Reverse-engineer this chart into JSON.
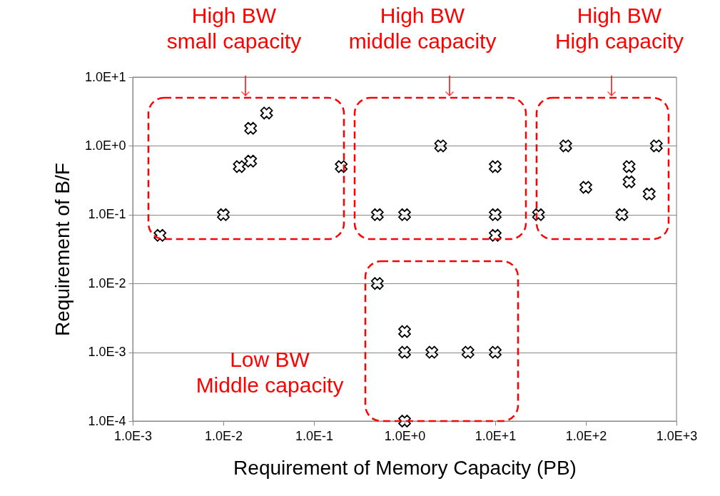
{
  "chart_data": {
    "type": "scatter",
    "xlabel": "Requirement of Memory Capacity (PB)",
    "ylabel": "Requirement of  B/F",
    "x": [
      0.002,
      0.01,
      0.015,
      0.02,
      0.02,
      0.03,
      0.2,
      0.5,
      1,
      2.5,
      10,
      10,
      10,
      30,
      60,
      100,
      250,
      300,
      300,
      500,
      600,
      0.5,
      1,
      1,
      2,
      5,
      10,
      1
    ],
    "series": [
      {
        "color": "#000000",
        "values": [
          0.05,
          0.1,
          0.5,
          0.6,
          1.8,
          3,
          0.5,
          0.1,
          0.1,
          1,
          0.5,
          0.1,
          0.05,
          0.1,
          1,
          0.25,
          0.1,
          0.5,
          0.3,
          0.2,
          1,
          0.01,
          0.002,
          0.001,
          0.001,
          0.001,
          0.001,
          0.0001
        ]
      }
    ],
    "log": "xy",
    "xlim": [
      0.001,
      1000
    ],
    "ylim": [
      0.0001,
      10
    ],
    "xticks": [
      {
        "value": 0.001,
        "label": "1.0E-3"
      },
      {
        "value": 0.01,
        "label": "1.0E-2"
      },
      {
        "value": 0.1,
        "label": "1.0E-1"
      },
      {
        "value": 1,
        "label": "1.0E+0"
      },
      {
        "value": 10,
        "label": "1.0E+1"
      },
      {
        "value": 100,
        "label": "1.0E+2"
      },
      {
        "value": 1000,
        "label": "1.0E+3"
      }
    ],
    "yticks": [
      {
        "value": 0.0001,
        "label": "1.0E-4"
      },
      {
        "value": 0.001,
        "label": "1.0E-3"
      },
      {
        "value": 0.01,
        "label": "1.0E-2"
      },
      {
        "value": 0.1,
        "label": "1.0E-1"
      },
      {
        "value": 1,
        "label": "1.0E+0"
      },
      {
        "value": 10,
        "label": "1.0E+1"
      }
    ],
    "grid": "y",
    "marker": "cross",
    "legend": false,
    "annotations": [
      "High BW\nsmall capacity",
      "High BW\nmiddle capacity",
      "High BW\nHigh capacity",
      "Low BW\nMiddle capacity"
    ]
  }
}
